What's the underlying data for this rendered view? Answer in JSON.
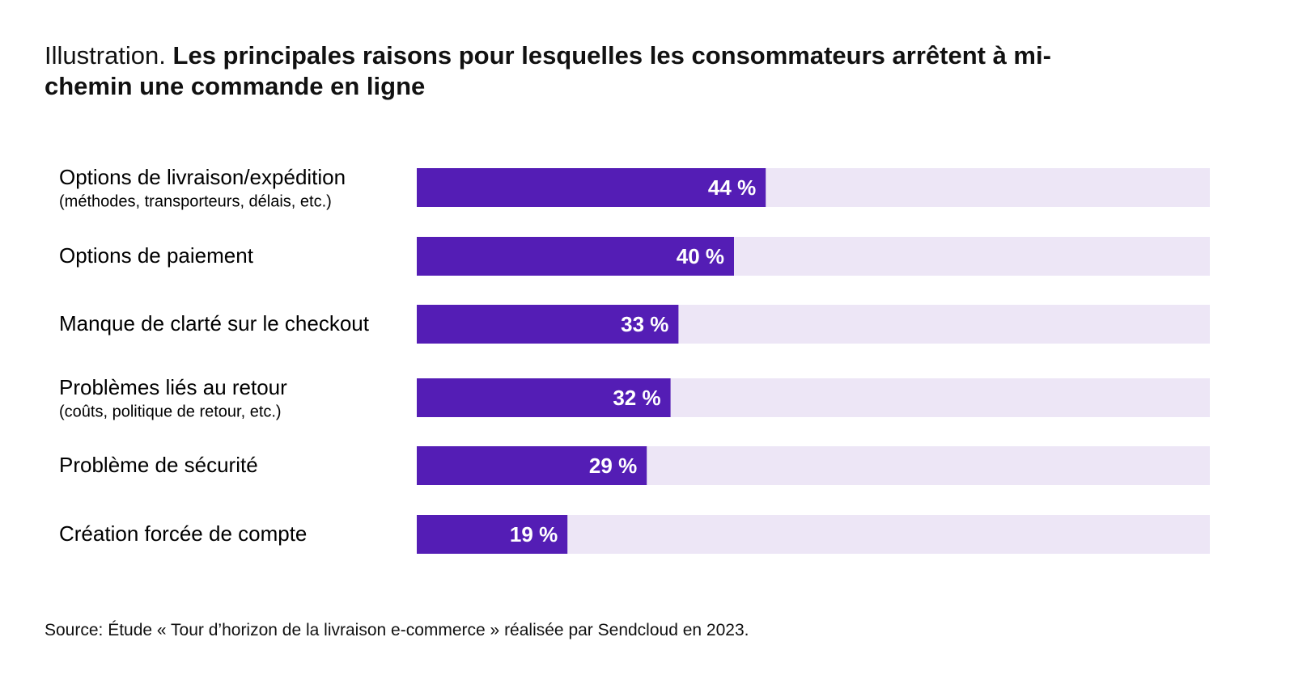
{
  "chart_data": {
    "type": "bar",
    "orientation": "horizontal",
    "title_prefix": "Illustration.",
    "title": "Les principales raisons pour lesquelles les consommateurs arrêtent à mi-chemin une commande en ligne",
    "categories": [
      "Options de livraison/expédition",
      "Options de paiement",
      "Manque de clarté sur le checkout",
      "Problèmes liés au retour",
      "Problème de sécurité",
      "Création forcée de compte"
    ],
    "category_notes": [
      "(méthodes, transporteurs, délais, etc.)",
      null,
      null,
      "(coûts, politique de retour, etc.)",
      null,
      null
    ],
    "values": [
      44,
      40,
      33,
      32,
      29,
      19
    ],
    "value_labels": [
      "44 %",
      "40 %",
      "33 %",
      "32 %",
      "29 %",
      "19 %"
    ],
    "xlim": [
      0,
      100
    ],
    "color": "#541db5",
    "track_color": "#ede6f6",
    "source": "Source: Étude « Tour d’horizon de la livraison e-commerce » réalisée par Sendcloud en 2023."
  }
}
